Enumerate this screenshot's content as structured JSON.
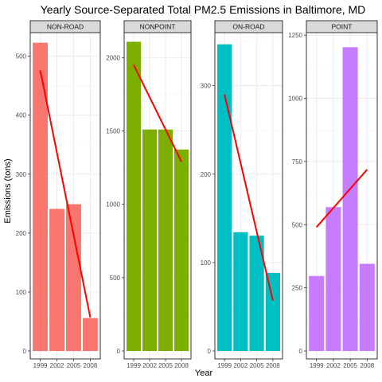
{
  "chart_data": {
    "type": "bar",
    "title": "Yearly Source-Separated Total PM2.5 Emissions in Baltimore, MD",
    "xlabel": "Year",
    "ylabel": "Emissions (tons)",
    "categories": [
      "1999",
      "2002",
      "2005",
      "2008"
    ],
    "trend_color": "#ff0000",
    "grid": true,
    "facets": [
      {
        "name": "NON-ROAD",
        "color": "#f8766d",
        "values": [
          522.9,
          241.0,
          248.9,
          55.8
        ],
        "ylim": [
          0,
          540
        ],
        "yticks": [
          0,
          100,
          200,
          300,
          400,
          500
        ],
        "trend": [
          476,
          57
        ]
      },
      {
        "name": "NONPOINT",
        "color": "#7cae00",
        "values": [
          2107.6,
          1509.5,
          1509.5,
          1373.2
        ],
        "ylim": [
          0,
          2170
        ],
        "yticks": [
          0,
          500,
          1000,
          1500,
          2000
        ],
        "trend": [
          1950,
          1290
        ]
      },
      {
        "name": "ON-ROAD",
        "color": "#00bfc4",
        "values": [
          346.8,
          134.3,
          130.4,
          88.3
        ],
        "ylim": [
          0,
          360
        ],
        "yticks": [
          0,
          100,
          200,
          300
        ],
        "trend": [
          290,
          57
        ]
      },
      {
        "name": "POINT",
        "color": "#c77cff",
        "values": [
          296.8,
          569.3,
          1202.5,
          344.98
        ],
        "ylim": [
          0,
          1260
        ],
        "yticks": [
          0,
          250,
          500,
          750,
          1000,
          1250
        ],
        "trend": [
          490,
          718
        ]
      }
    ]
  }
}
